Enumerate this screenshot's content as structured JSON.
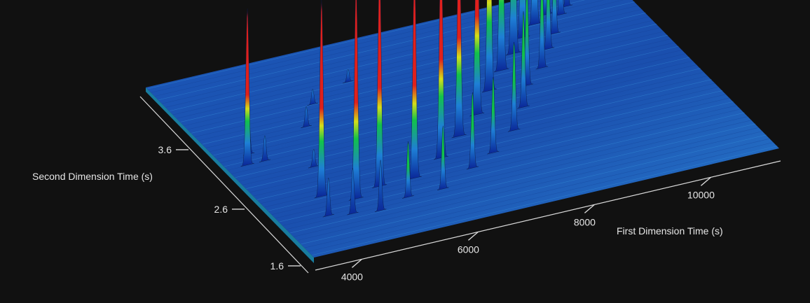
{
  "chart_data": {
    "type": "surface-3d",
    "x_axis": {
      "label": "First Dimension Time (s)",
      "ticks": [
        4000,
        6000,
        8000,
        10000
      ],
      "range": [
        3200,
        11200
      ]
    },
    "y_axis": {
      "label": "Second Dimension Time (s)",
      "ticks": [
        1.6,
        2.6,
        3.6
      ],
      "range": [
        1.5,
        4.5
      ]
    },
    "z_axis": {
      "label": "",
      "range": [
        0,
        1
      ]
    },
    "colormap": [
      "#0b2a9a",
      "#1e7fd6",
      "#12c24a",
      "#d4df1a",
      "#e0201c"
    ],
    "peaks": [
      {
        "x": 3550,
        "y": 3.05,
        "h": 0.62
      },
      {
        "x": 3980,
        "y": 2.05,
        "h": 0.15
      },
      {
        "x": 3720,
        "y": 3.2,
        "h": 0.14
      },
      {
        "x": 3850,
        "y": 3.05,
        "h": 0.1
      },
      {
        "x": 4150,
        "y": 2.35,
        "h": 0.78
      },
      {
        "x": 4350,
        "y": 2.0,
        "h": 0.18
      },
      {
        "x": 4600,
        "y": 2.2,
        "h": 0.85
      },
      {
        "x": 4780,
        "y": 1.95,
        "h": 0.2
      },
      {
        "x": 5100,
        "y": 2.3,
        "h": 0.87
      },
      {
        "x": 5350,
        "y": 2.05,
        "h": 0.22
      },
      {
        "x": 5700,
        "y": 2.3,
        "h": 0.82
      },
      {
        "x": 5950,
        "y": 2.05,
        "h": 0.25
      },
      {
        "x": 6350,
        "y": 2.5,
        "h": 0.87
      },
      {
        "x": 6650,
        "y": 2.25,
        "h": 0.3
      },
      {
        "x": 6900,
        "y": 2.75,
        "h": 0.87
      },
      {
        "x": 7150,
        "y": 2.4,
        "h": 0.3
      },
      {
        "x": 7450,
        "y": 3.0,
        "h": 0.87
      },
      {
        "x": 7750,
        "y": 2.65,
        "h": 0.35
      },
      {
        "x": 7950,
        "y": 3.3,
        "h": 0.97
      },
      {
        "x": 8200,
        "y": 2.95,
        "h": 0.38
      },
      {
        "x": 8400,
        "y": 3.55,
        "h": 0.95
      },
      {
        "x": 8550,
        "y": 3.25,
        "h": 0.4
      },
      {
        "x": 8800,
        "y": 3.75,
        "h": 1.0
      },
      {
        "x": 9000,
        "y": 3.45,
        "h": 0.38
      },
      {
        "x": 9150,
        "y": 3.95,
        "h": 0.88
      },
      {
        "x": 9350,
        "y": 3.7,
        "h": 0.35
      },
      {
        "x": 9500,
        "y": 4.1,
        "h": 0.7
      },
      {
        "x": 9650,
        "y": 3.9,
        "h": 0.3
      },
      {
        "x": 9800,
        "y": 4.2,
        "h": 0.52
      },
      {
        "x": 10000,
        "y": 4.15,
        "h": 0.25
      },
      {
        "x": 10200,
        "y": 4.25,
        "h": 0.12
      },
      {
        "x": 4900,
        "y": 3.4,
        "h": 0.08
      },
      {
        "x": 5300,
        "y": 3.7,
        "h": 0.06
      },
      {
        "x": 6100,
        "y": 3.9,
        "h": 0.05
      },
      {
        "x": 4450,
        "y": 2.8,
        "h": 0.07
      }
    ]
  }
}
